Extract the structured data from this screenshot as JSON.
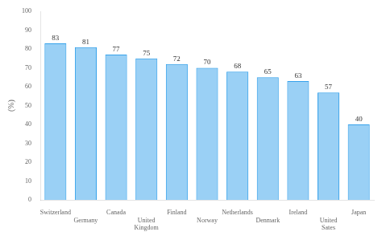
{
  "chart_data": {
    "type": "bar",
    "categories": [
      "Switzerland",
      "Germany",
      "Canada",
      "United\nKingdom",
      "Finland",
      "Norway",
      "Netherlands",
      "Denmark",
      "Ireland",
      "United\nSates",
      "Japan"
    ],
    "values": [
      83,
      81,
      77,
      75,
      72,
      70,
      68,
      65,
      63,
      57,
      40
    ],
    "ylabel": "(%)",
    "ylim": [
      0,
      100
    ],
    "yticks": [
      0,
      10,
      20,
      30,
      40,
      50,
      60,
      70,
      80,
      90,
      100
    ],
    "grid": false,
    "data_labels": true
  }
}
